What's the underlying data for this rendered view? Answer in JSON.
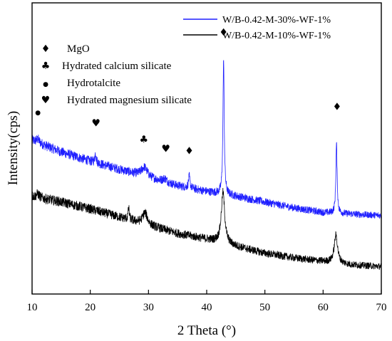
{
  "chart_data": {
    "type": "line",
    "title": "",
    "xlabel": "2 Theta (°)",
    "ylabel": "Intensity(cps)",
    "xlim": [
      10,
      70
    ],
    "xticks": [
      10,
      20,
      30,
      40,
      50,
      60,
      70
    ],
    "y_ticks_shown": false,
    "grid": false,
    "legend_position": "top-right",
    "series": [
      {
        "name": "W/B-0.42-M-30%-WF-1%",
        "color": "#1f1fff",
        "baseline": [
          [
            10,
            41
          ],
          [
            15,
            36
          ],
          [
            20,
            32
          ],
          [
            25,
            28.5
          ],
          [
            30,
            25
          ],
          [
            35,
            21.5
          ],
          [
            40,
            19
          ],
          [
            45,
            17
          ],
          [
            50,
            14.5
          ],
          [
            55,
            12
          ],
          [
            60,
            10
          ],
          [
            65,
            9.3
          ],
          [
            70,
            8.7
          ]
        ],
        "peaks": [
          {
            "x": 11,
            "height": 1.5,
            "width": 0.3
          },
          {
            "x": 20.9,
            "height": 4,
            "width": 0.15
          },
          {
            "x": 29.3,
            "height": 4,
            "width": 0.6
          },
          {
            "x": 32.8,
            "height": 1.5,
            "width": 0.4
          },
          {
            "x": 37.0,
            "height": 5,
            "width": 0.15
          },
          {
            "x": 42.9,
            "height": 58,
            "width": 0.13
          },
          {
            "x": 62.3,
            "height": 30,
            "width": 0.13
          }
        ],
        "noise": 2.2
      },
      {
        "name": "W/B-0.42-M-10%-WF-1%",
        "color": "#000000",
        "baseline": [
          [
            10,
            17
          ],
          [
            15,
            14.5
          ],
          [
            20,
            11.5
          ],
          [
            25,
            8
          ],
          [
            30,
            4.5
          ],
          [
            35,
            1
          ],
          [
            40,
            -1.5
          ],
          [
            45,
            -4.5
          ],
          [
            50,
            -7.5
          ],
          [
            55,
            -9.5
          ],
          [
            60,
            -11
          ],
          [
            65,
            -12.5
          ],
          [
            70,
            -13.2
          ]
        ],
        "peaks": [
          {
            "x": 11,
            "height": 1.5,
            "width": 0.3
          },
          {
            "x": 26.6,
            "height": 5,
            "width": 0.12
          },
          {
            "x": 29.4,
            "height": 5,
            "width": 0.5
          },
          {
            "x": 42.8,
            "height": 22,
            "width": 0.35
          },
          {
            "x": 62.2,
            "height": 12,
            "width": 0.35
          }
        ],
        "noise": 2.2
      }
    ],
    "legend_key": [
      {
        "symbol": "♦",
        "label": "MgO"
      },
      {
        "symbol": "♣",
        "label": "Hydrated calcium silicate"
      },
      {
        "symbol": "●",
        "label": "Hydrotalcite"
      },
      {
        "symbol": "♥",
        "label": "Hydrated magnesium silicate"
      }
    ],
    "peak_markers": [
      {
        "symbol": "●",
        "x": 11.0,
        "y": 52
      },
      {
        "symbol": "♥",
        "x": 21.0,
        "y": 47
      },
      {
        "symbol": "♣",
        "x": 29.2,
        "y": 40
      },
      {
        "symbol": "♥",
        "x": 33.0,
        "y": 36
      },
      {
        "symbol": "♦",
        "x": 37.0,
        "y": 35
      },
      {
        "symbol": "♦",
        "x": 42.9,
        "y": 86
      },
      {
        "symbol": "♦",
        "x": 62.4,
        "y": 54
      }
    ]
  }
}
